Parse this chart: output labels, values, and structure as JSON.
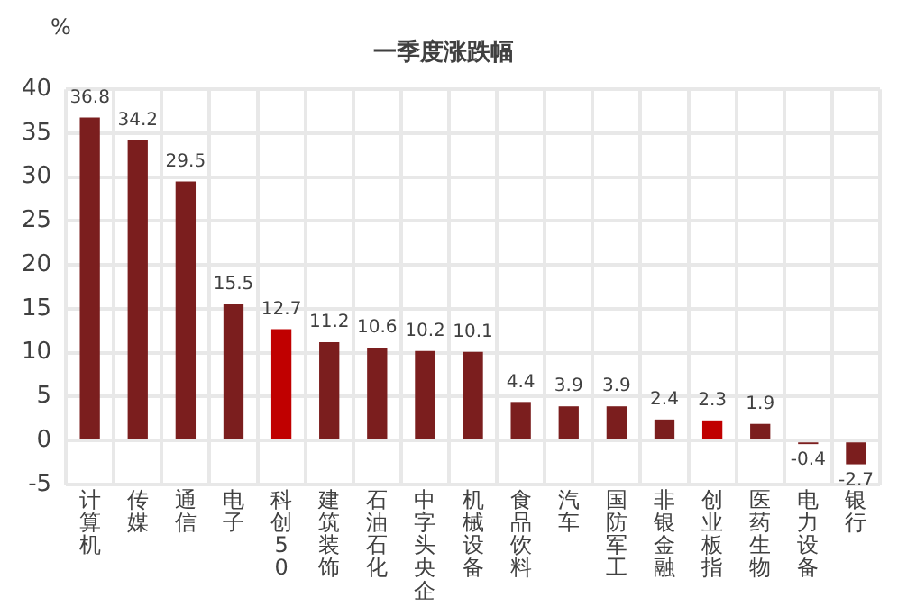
{
  "chart_data": {
    "type": "bar",
    "title": "一季度涨跌幅",
    "ylabel": "%",
    "categories": [
      "计算机",
      "传媒",
      "通信",
      "电子",
      "科创50",
      "建筑装饰",
      "石油石化",
      "中字头央企",
      "机械设备",
      "食品饮料",
      "汽车",
      "国防军工",
      "非银金融",
      "创业板指",
      "医药生物",
      "电力设备",
      "银行"
    ],
    "values": [
      36.8,
      34.2,
      29.5,
      15.5,
      12.7,
      11.2,
      10.6,
      10.2,
      10.1,
      4.4,
      3.9,
      3.9,
      2.4,
      2.3,
      1.9,
      -0.4,
      -2.7
    ],
    "colors": [
      "#7b1e1e",
      "#7b1e1e",
      "#7b1e1e",
      "#7b1e1e",
      "#c00000",
      "#7b1e1e",
      "#7b1e1e",
      "#7b1e1e",
      "#7b1e1e",
      "#7b1e1e",
      "#7b1e1e",
      "#7b1e1e",
      "#7b1e1e",
      "#c00000",
      "#7b1e1e",
      "#7b1e1e",
      "#7b1e1e"
    ],
    "ylim": [
      -5,
      40
    ],
    "yticks": [
      -5,
      0,
      5,
      10,
      15,
      20,
      25,
      30,
      35,
      40
    ],
    "grid": true,
    "data_labels": true
  }
}
